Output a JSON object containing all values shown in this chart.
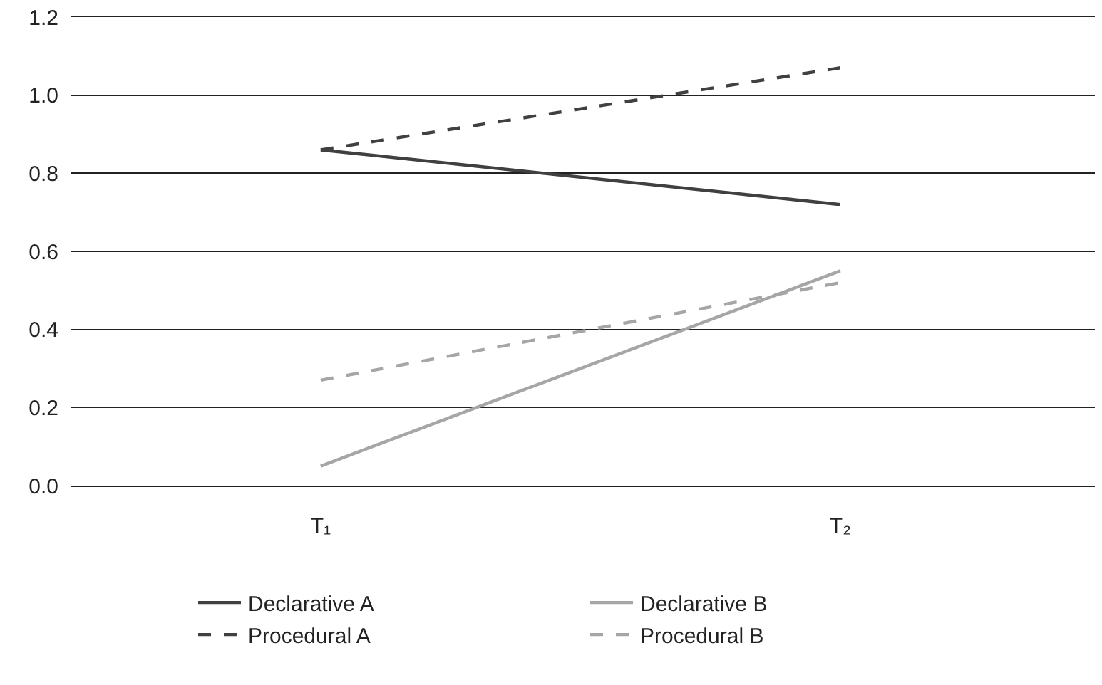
{
  "chart_data": {
    "type": "line",
    "categories": [
      "T₁",
      "T₂"
    ],
    "series": [
      {
        "name": "Declarative A",
        "color": "#404040",
        "values": [
          0.86,
          0.72
        ],
        "line_style": "solid"
      },
      {
        "name": "Declarative B",
        "color": "#a6a6a6",
        "values": [
          0.05,
          0.55
        ],
        "line_style": "solid"
      },
      {
        "name": "Procedural A",
        "color": "#404040",
        "values": [
          0.86,
          1.07
        ],
        "line_style": "dashed"
      },
      {
        "name": "Procedural B",
        "color": "#a6a6a6",
        "values": [
          0.27,
          0.52
        ],
        "line_style": "dashed"
      }
    ],
    "ylim": [
      0,
      1.2
    ],
    "yticks": [
      {
        "value": 0,
        "label": "0.0"
      },
      {
        "value": 0.2,
        "label": "0.2"
      },
      {
        "value": 0.4,
        "label": "0.4"
      },
      {
        "value": 0.6,
        "label": "0.6"
      },
      {
        "value": 0.8,
        "label": "0.8"
      },
      {
        "value": 1.0,
        "label": "1.0"
      },
      {
        "value": 1.2,
        "label": "1.2"
      }
    ],
    "grid": "y",
    "legend": "bottom",
    "marker": "none"
  }
}
